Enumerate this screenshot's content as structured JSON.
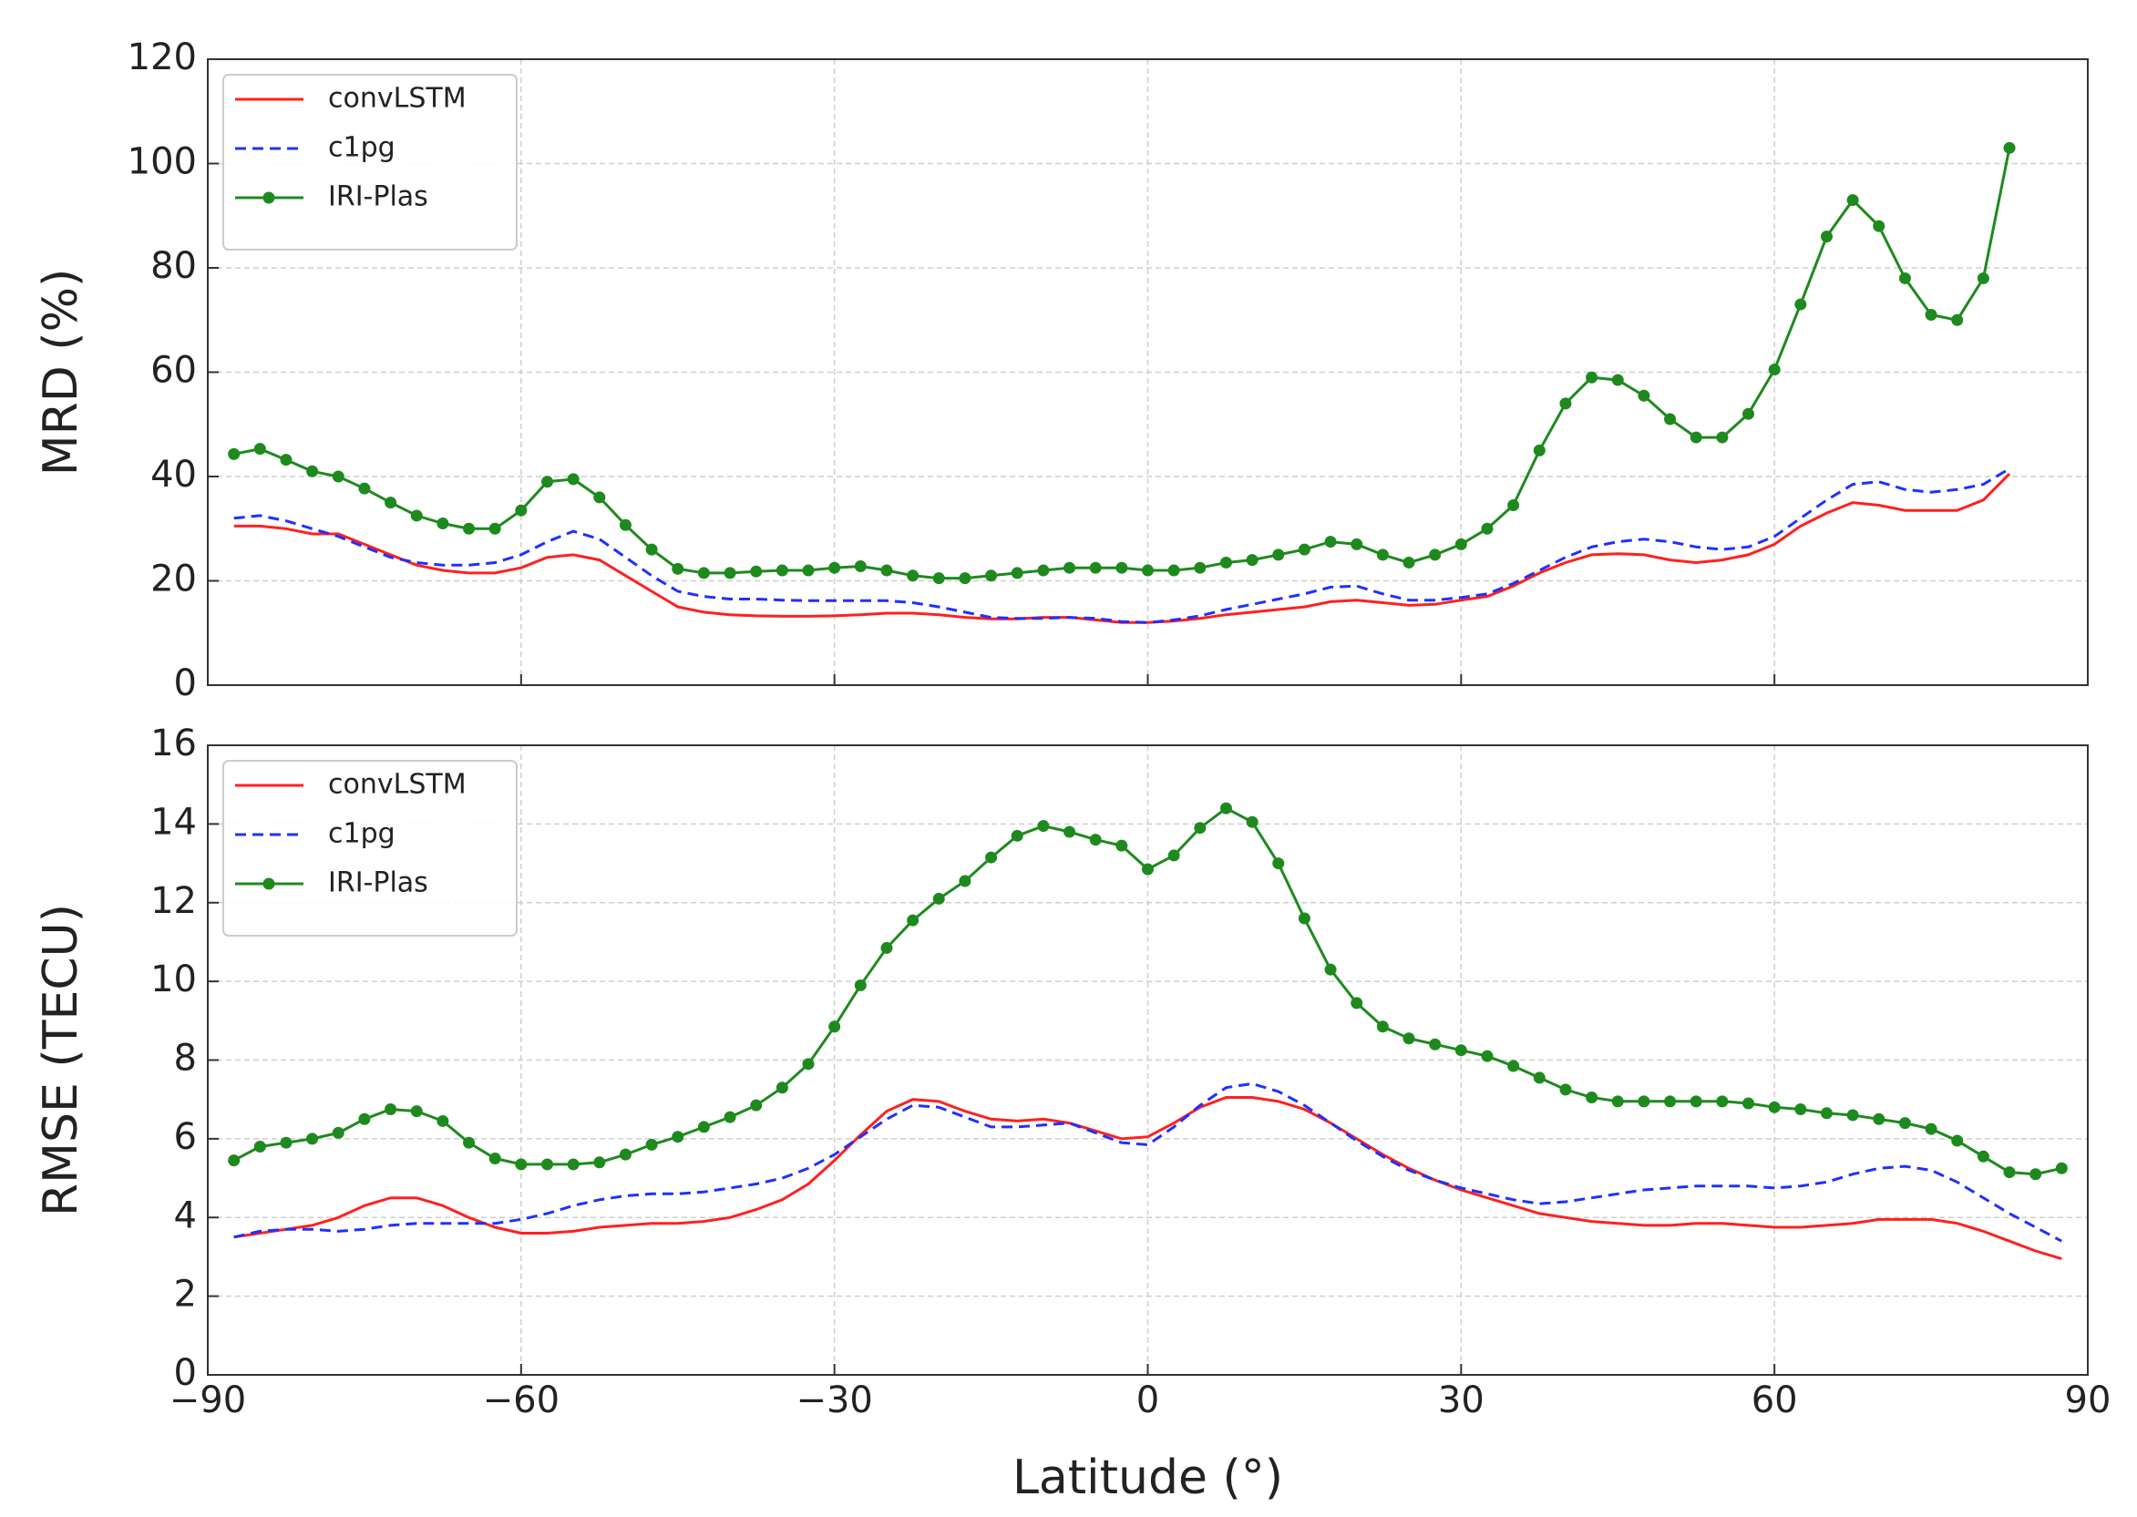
{
  "chart_data": [
    {
      "type": "line",
      "ylabel": "MRD (%)",
      "x": [
        -87.5,
        -85,
        -82.5,
        -80,
        -77.5,
        -75,
        -72.5,
        -70,
        -67.5,
        -65,
        -62.5,
        -60,
        -57.5,
        -55,
        -52.5,
        -50,
        -47.5,
        -45,
        -42.5,
        -40,
        -37.5,
        -35,
        -32.5,
        -30,
        -27.5,
        -25,
        -22.5,
        -20,
        -17.5,
        -15,
        -12.5,
        -10,
        -7.5,
        -5,
        -2.5,
        0,
        2.5,
        5,
        7.5,
        10,
        12.5,
        15,
        17.5,
        20,
        22.5,
        25,
        27.5,
        30,
        32.5,
        35,
        37.5,
        40,
        42.5,
        45,
        47.5,
        50,
        52.5,
        55,
        57.5,
        60,
        62.5,
        65,
        67.5,
        70,
        72.5,
        75,
        77.5,
        80,
        82.5
      ],
      "xlim": [
        -90,
        90
      ],
      "xticks": [
        -90,
        -60,
        -30,
        0,
        30,
        60,
        90
      ],
      "ylim": [
        0,
        120
      ],
      "yticks": [
        0,
        20,
        40,
        60,
        80,
        100,
        120
      ],
      "grid": true,
      "legend": "upper left",
      "series": [
        {
          "name": "convLSTM",
          "color": "#ff2020",
          "linestyle": "solid",
          "values": [
            30.5,
            30.5,
            30,
            29,
            29,
            27,
            25,
            23,
            22,
            21.5,
            21.5,
            22.5,
            24.5,
            25,
            24,
            21,
            18,
            15,
            14,
            13.5,
            13.3,
            13.2,
            13.2,
            13.3,
            13.5,
            13.8,
            13.8,
            13.5,
            13,
            12.7,
            12.7,
            13,
            13,
            12.5,
            12,
            12,
            12.3,
            12.8,
            13.5,
            14,
            14.5,
            15,
            16,
            16.3,
            15.8,
            15.3,
            15.5,
            16.3,
            17,
            19,
            21.5,
            23.5,
            25,
            25.2,
            25,
            24,
            23.5,
            24,
            25,
            27,
            30.5,
            33,
            35,
            34.5,
            33.5,
            33.5,
            33.5,
            35.5,
            40.5
          ]
        },
        {
          "name": "c1pg",
          "color": "#2030ff",
          "linestyle": "dashed",
          "values": [
            32,
            32.5,
            31.5,
            30,
            28.5,
            26.5,
            24.5,
            23.5,
            23,
            23,
            23.5,
            25,
            27.5,
            29.5,
            28,
            24.5,
            21,
            18,
            17,
            16.5,
            16.5,
            16.3,
            16.2,
            16.2,
            16.2,
            16.2,
            15.8,
            15,
            14,
            13,
            12.8,
            12.8,
            13,
            12.8,
            12.2,
            12,
            12.5,
            13.3,
            14.5,
            15.5,
            16.5,
            17.5,
            18.8,
            19,
            17.5,
            16.3,
            16.3,
            16.8,
            17.5,
            19.5,
            22,
            24.5,
            26.5,
            27.5,
            28,
            27.5,
            26.5,
            26,
            26.5,
            28.5,
            32,
            35.5,
            38.5,
            39,
            37.5,
            37,
            37.5,
            38.5,
            41.5
          ]
        },
        {
          "name": "IRI-Plas",
          "color": "#1e8a1e",
          "linestyle": "solid",
          "marker": "o",
          "values": [
            44.3,
            45.3,
            43.2,
            41,
            40,
            37.7,
            35,
            32.5,
            31,
            30,
            30,
            33.5,
            39,
            39.5,
            36,
            30.7,
            26,
            22.3,
            21.5,
            21.5,
            21.8,
            22,
            22,
            22.5,
            22.8,
            22,
            21,
            20.5,
            20.5,
            21,
            21.5,
            22,
            22.5,
            22.5,
            22.5,
            22,
            22,
            22.5,
            23.5,
            24,
            25,
            26,
            27.5,
            27,
            25,
            23.5,
            25,
            27,
            30,
            34.5,
            45,
            54,
            59,
            58.5,
            55.5,
            51,
            47.5,
            47.5,
            52,
            60.5,
            73,
            86,
            93,
            88,
            78,
            71,
            70,
            78,
            103
          ]
        }
      ]
    },
    {
      "type": "line",
      "ylabel": "RMSE (TECU)",
      "xlabel": "Latitude (°)",
      "x": [
        -87.5,
        -85,
        -82.5,
        -80,
        -77.5,
        -75,
        -72.5,
        -70,
        -67.5,
        -65,
        -62.5,
        -60,
        -57.5,
        -55,
        -52.5,
        -50,
        -47.5,
        -45,
        -42.5,
        -40,
        -37.5,
        -35,
        -32.5,
        -30,
        -27.5,
        -25,
        -22.5,
        -20,
        -17.5,
        -15,
        -12.5,
        -10,
        -7.5,
        -5,
        -2.5,
        0,
        2.5,
        5,
        7.5,
        10,
        12.5,
        15,
        17.5,
        20,
        22.5,
        25,
        27.5,
        30,
        32.5,
        35,
        37.5,
        40,
        42.5,
        45,
        47.5,
        50,
        52.5,
        55,
        57.5,
        60,
        62.5,
        65,
        67.5,
        70,
        72.5,
        75,
        77.5,
        80,
        82.5,
        85,
        87.5
      ],
      "xlim": [
        -90,
        90
      ],
      "xticks": [
        {
          "value": -90,
          "label": "−90"
        },
        {
          "value": -60,
          "label": "−60"
        },
        {
          "value": -30,
          "label": "−30"
        },
        0,
        30,
        60,
        90
      ],
      "ylim": [
        0,
        16
      ],
      "yticks": [
        0,
        2,
        4,
        6,
        8,
        10,
        12,
        14,
        16
      ],
      "grid": true,
      "legend": "upper left",
      "series": [
        {
          "name": "convLSTM",
          "color": "#ff2020",
          "linestyle": "solid",
          "values": [
            3.5,
            3.6,
            3.7,
            3.8,
            4.0,
            4.3,
            4.5,
            4.5,
            4.3,
            4.0,
            3.75,
            3.6,
            3.6,
            3.65,
            3.75,
            3.8,
            3.85,
            3.85,
            3.9,
            4.0,
            4.2,
            4.45,
            4.85,
            5.45,
            6.1,
            6.7,
            7.0,
            6.95,
            6.7,
            6.5,
            6.45,
            6.5,
            6.4,
            6.2,
            6.0,
            6.05,
            6.4,
            6.8,
            7.05,
            7.05,
            6.95,
            6.75,
            6.4,
            6.0,
            5.6,
            5.25,
            4.95,
            4.7,
            4.5,
            4.3,
            4.1,
            4.0,
            3.9,
            3.85,
            3.8,
            3.8,
            3.85,
            3.85,
            3.8,
            3.75,
            3.75,
            3.8,
            3.85,
            3.95,
            3.95,
            3.95,
            3.85,
            3.65,
            3.4,
            3.15,
            2.95
          ]
        },
        {
          "name": "c1pg",
          "color": "#2030ff",
          "linestyle": "dashed",
          "values": [
            3.5,
            3.65,
            3.7,
            3.7,
            3.65,
            3.7,
            3.8,
            3.85,
            3.85,
            3.85,
            3.85,
            3.95,
            4.1,
            4.3,
            4.45,
            4.55,
            4.6,
            4.6,
            4.65,
            4.75,
            4.85,
            5.0,
            5.25,
            5.6,
            6.05,
            6.5,
            6.85,
            6.8,
            6.55,
            6.3,
            6.3,
            6.35,
            6.4,
            6.15,
            5.9,
            5.85,
            6.3,
            6.85,
            7.3,
            7.4,
            7.2,
            6.85,
            6.4,
            5.95,
            5.55,
            5.2,
            4.95,
            4.75,
            4.6,
            4.45,
            4.35,
            4.4,
            4.5,
            4.6,
            4.7,
            4.75,
            4.8,
            4.8,
            4.8,
            4.75,
            4.8,
            4.9,
            5.1,
            5.25,
            5.3,
            5.2,
            4.9,
            4.5,
            4.1,
            3.75,
            3.4
          ]
        },
        {
          "name": "IRI-Plas",
          "color": "#1e8a1e",
          "linestyle": "solid",
          "marker": "o",
          "values": [
            5.45,
            5.8,
            5.9,
            6.0,
            6.15,
            6.5,
            6.75,
            6.7,
            6.45,
            5.9,
            5.5,
            5.35,
            5.35,
            5.35,
            5.4,
            5.6,
            5.85,
            6.05,
            6.3,
            6.55,
            6.85,
            7.3,
            7.9,
            8.85,
            9.9,
            10.85,
            11.55,
            12.1,
            12.55,
            13.15,
            13.7,
            13.95,
            13.8,
            13.6,
            13.45,
            12.85,
            13.2,
            13.9,
            14.4,
            14.05,
            13.0,
            11.6,
            10.3,
            9.45,
            8.85,
            8.55,
            8.4,
            8.25,
            8.1,
            7.85,
            7.55,
            7.25,
            7.05,
            6.95,
            6.95,
            6.95,
            6.95,
            6.95,
            6.9,
            6.8,
            6.75,
            6.65,
            6.6,
            6.5,
            6.4,
            6.25,
            5.95,
            5.55,
            5.15,
            5.1,
            5.25
          ]
        }
      ]
    }
  ]
}
